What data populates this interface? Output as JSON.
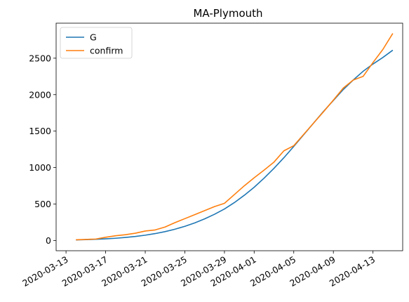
{
  "chart_data": {
    "type": "line",
    "title": "MA-Plymouth",
    "xlabel": "",
    "ylabel": "",
    "x_ticks": [
      "2020-03-13",
      "2020-03-17",
      "2020-03-21",
      "2020-03-25",
      "2020-03-29",
      "2020-04-01",
      "2020-04-05",
      "2020-04-09",
      "2020-04-13"
    ],
    "y_ticks": [
      0,
      500,
      1000,
      1500,
      2000,
      2500
    ],
    "xlim": [
      "2020-03-12",
      "2020-04-16"
    ],
    "ylim": [
      -140,
      2980
    ],
    "grid": false,
    "legend_position": "top-left",
    "series": [
      {
        "name": "G",
        "color": "#1f77b4",
        "points": [
          [
            "2020-03-14",
            8
          ],
          [
            "2020-03-15",
            12
          ],
          [
            "2020-03-16",
            17
          ],
          [
            "2020-03-17",
            23
          ],
          [
            "2020-03-18",
            31
          ],
          [
            "2020-03-19",
            42
          ],
          [
            "2020-03-20",
            56
          ],
          [
            "2020-03-21",
            73
          ],
          [
            "2020-03-22",
            95
          ],
          [
            "2020-03-23",
            122
          ],
          [
            "2020-03-24",
            155
          ],
          [
            "2020-03-25",
            195
          ],
          [
            "2020-03-26",
            242
          ],
          [
            "2020-03-27",
            297
          ],
          [
            "2020-03-28",
            360
          ],
          [
            "2020-03-29",
            432
          ],
          [
            "2020-03-30",
            520
          ],
          [
            "2020-03-31",
            620
          ],
          [
            "2020-04-01",
            730
          ],
          [
            "2020-04-02",
            855
          ],
          [
            "2020-04-03",
            990
          ],
          [
            "2020-04-04",
            1135
          ],
          [
            "2020-04-05",
            1290
          ],
          [
            "2020-04-06",
            1450
          ],
          [
            "2020-04-07",
            1610
          ],
          [
            "2020-04-08",
            1770
          ],
          [
            "2020-04-09",
            1920
          ],
          [
            "2020-04-10",
            2070
          ],
          [
            "2020-04-11",
            2200
          ],
          [
            "2020-04-12",
            2320
          ],
          [
            "2020-04-13",
            2420
          ],
          [
            "2020-04-14",
            2510
          ],
          [
            "2020-04-15",
            2610
          ]
        ]
      },
      {
        "name": "confirm",
        "color": "#ff7f0e",
        "points": [
          [
            "2020-03-14",
            10
          ],
          [
            "2020-03-15",
            15
          ],
          [
            "2020-03-16",
            20
          ],
          [
            "2020-03-17",
            45
          ],
          [
            "2020-03-18",
            65
          ],
          [
            "2020-03-19",
            80
          ],
          [
            "2020-03-20",
            100
          ],
          [
            "2020-03-21",
            130
          ],
          [
            "2020-03-22",
            145
          ],
          [
            "2020-03-23",
            185
          ],
          [
            "2020-03-24",
            245
          ],
          [
            "2020-03-25",
            300
          ],
          [
            "2020-03-26",
            355
          ],
          [
            "2020-03-27",
            410
          ],
          [
            "2020-03-28",
            465
          ],
          [
            "2020-03-29",
            510
          ],
          [
            "2020-03-30",
            630
          ],
          [
            "2020-03-31",
            750
          ],
          [
            "2020-04-01",
            860
          ],
          [
            "2020-04-02",
            965
          ],
          [
            "2020-04-03",
            1075
          ],
          [
            "2020-04-04",
            1230
          ],
          [
            "2020-04-05",
            1300
          ],
          [
            "2020-04-06",
            1455
          ],
          [
            "2020-04-07",
            1610
          ],
          [
            "2020-04-08",
            1765
          ],
          [
            "2020-04-09",
            1925
          ],
          [
            "2020-04-10",
            2090
          ],
          [
            "2020-04-11",
            2200
          ],
          [
            "2020-04-12",
            2250
          ],
          [
            "2020-04-13",
            2440
          ],
          [
            "2020-04-14",
            2620
          ],
          [
            "2020-04-15",
            2840
          ]
        ]
      }
    ]
  }
}
